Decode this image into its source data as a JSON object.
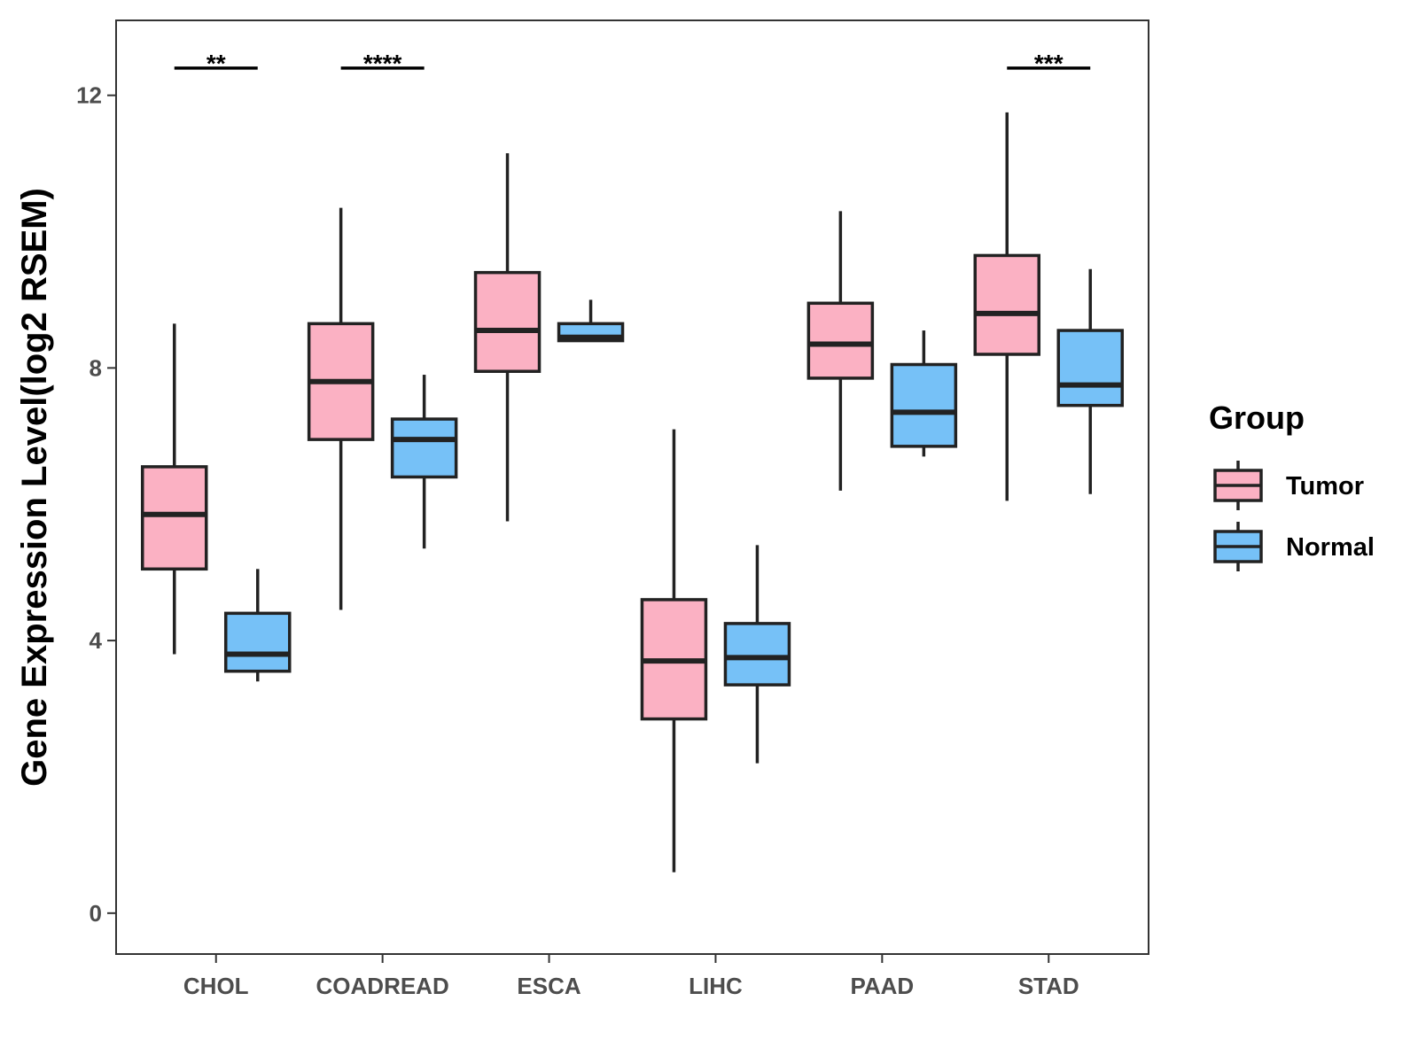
{
  "chart_data": {
    "type": "boxplot",
    "title": "",
    "xlabel": "",
    "ylabel": "Gene Expression Level(log2 RSEM)",
    "ylim": [
      -0.6,
      13.1
    ],
    "yticks": [
      0,
      4,
      8,
      12
    ],
    "categories": [
      "CHOL",
      "COADREAD",
      "ESCA",
      "LIHC",
      "PAAD",
      "STAD"
    ],
    "legend": {
      "title": "Group",
      "position": "right"
    },
    "series": [
      {
        "name": "Tumor",
        "color": "#FBB1C3",
        "boxes": [
          {
            "category": "CHOL",
            "min": 3.8,
            "q1": 5.05,
            "median": 5.85,
            "q3": 6.55,
            "max": 8.65
          },
          {
            "category": "COADREAD",
            "min": 4.45,
            "q1": 6.95,
            "median": 7.8,
            "q3": 8.65,
            "max": 10.35
          },
          {
            "category": "ESCA",
            "min": 5.75,
            "q1": 7.95,
            "median": 8.55,
            "q3": 9.4,
            "max": 11.15
          },
          {
            "category": "LIHC",
            "min": 0.6,
            "q1": 2.85,
            "median": 3.7,
            "q3": 4.6,
            "max": 7.1
          },
          {
            "category": "PAAD",
            "min": 6.2,
            "q1": 7.85,
            "median": 8.35,
            "q3": 8.95,
            "max": 10.3
          },
          {
            "category": "STAD",
            "min": 6.05,
            "q1": 8.2,
            "median": 8.8,
            "q3": 9.65,
            "max": 11.75
          }
        ]
      },
      {
        "name": "Normal",
        "color": "#76C1F7",
        "boxes": [
          {
            "category": "CHOL",
            "min": 3.4,
            "q1": 3.55,
            "median": 3.8,
            "q3": 4.4,
            "max": 5.05
          },
          {
            "category": "COADREAD",
            "min": 5.35,
            "q1": 6.4,
            "median": 6.95,
            "q3": 7.25,
            "max": 7.9
          },
          {
            "category": "ESCA",
            "min": 8.4,
            "q1": 8.4,
            "median": 8.45,
            "q3": 8.65,
            "max": 9.0
          },
          {
            "category": "LIHC",
            "min": 2.2,
            "q1": 3.35,
            "median": 3.75,
            "q3": 4.25,
            "max": 5.4
          },
          {
            "category": "PAAD",
            "min": 6.7,
            "q1": 6.85,
            "median": 7.35,
            "q3": 8.05,
            "max": 8.55
          },
          {
            "category": "STAD",
            "min": 6.15,
            "q1": 7.45,
            "median": 7.75,
            "q3": 8.55,
            "max": 9.45
          }
        ]
      }
    ],
    "annotations": [
      {
        "category": "CHOL",
        "text": "**",
        "y": 12.4
      },
      {
        "category": "COADREAD",
        "text": "****",
        "y": 12.4
      },
      {
        "category": "STAD",
        "text": "***",
        "y": 12.4
      }
    ]
  }
}
